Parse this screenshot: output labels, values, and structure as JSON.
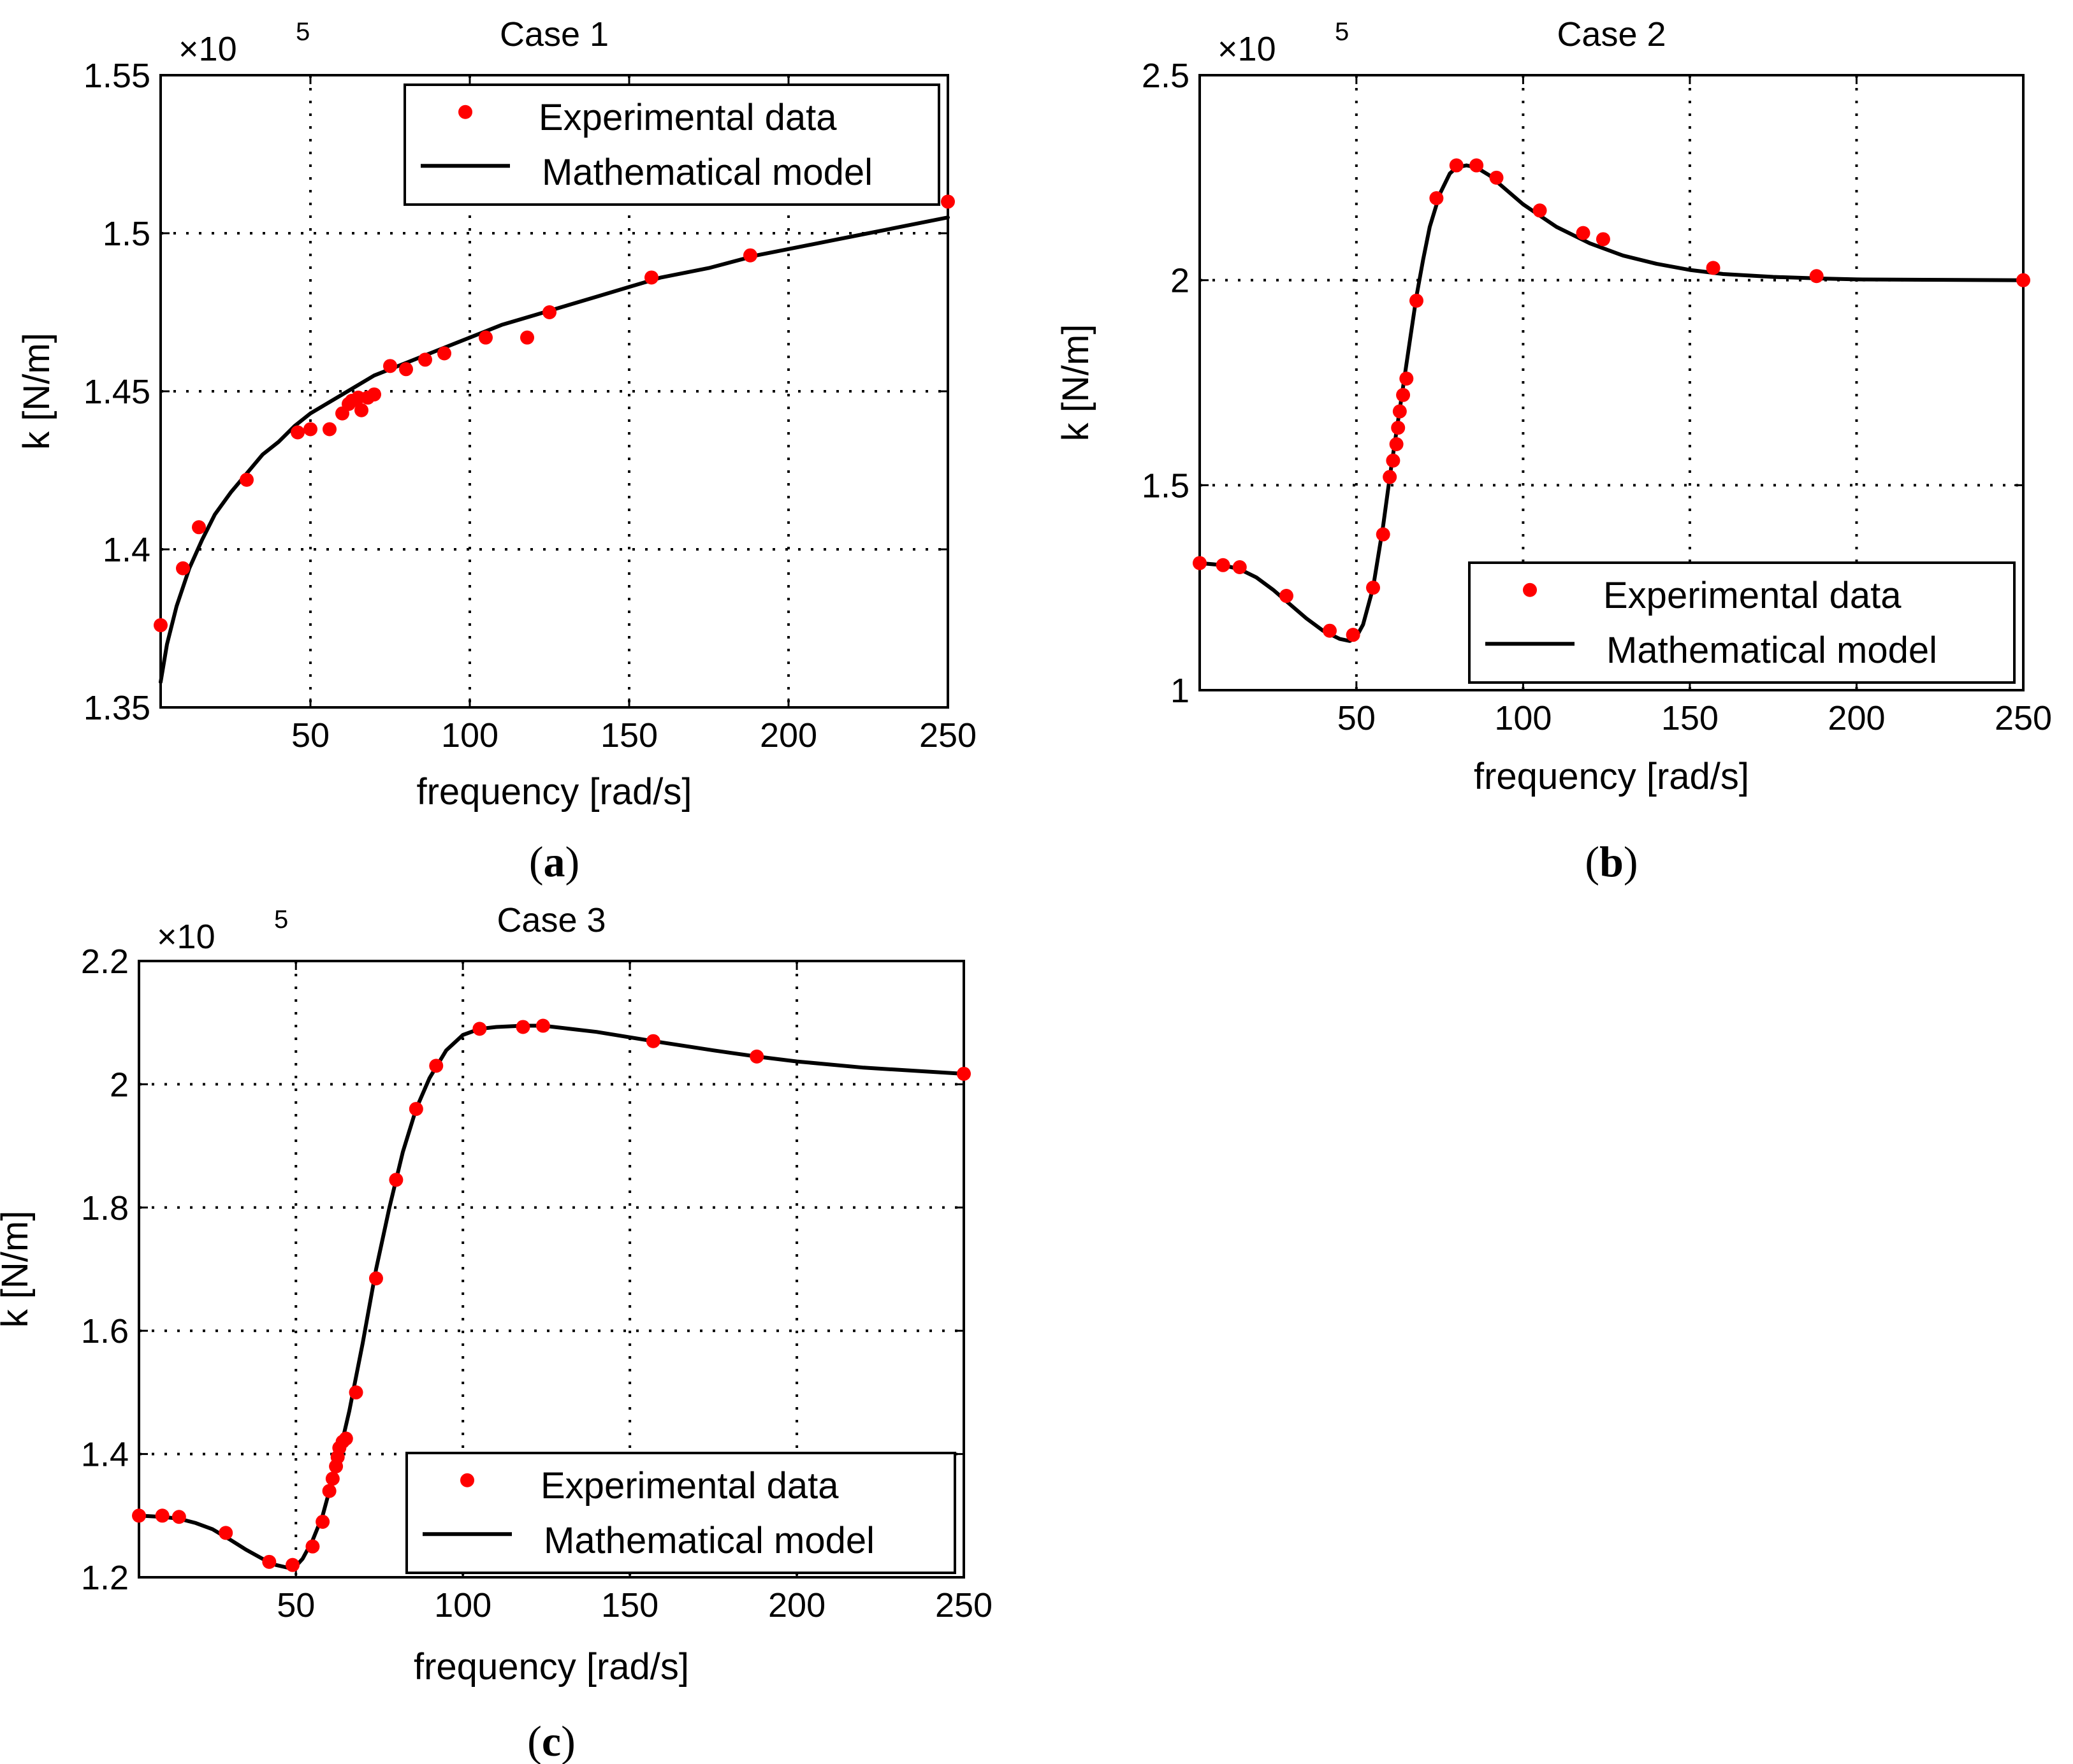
{
  "chart_data": [
    {
      "type": "line",
      "id": "a",
      "title": "Case 1",
      "xlabel": "frequency [rad/s]",
      "ylabel": "k [N/m]",
      "exponent_label": "×10",
      "exponent_power": "5",
      "panel_label": "a",
      "xlim": [
        3,
        250
      ],
      "ylim": [
        1.35,
        1.55
      ],
      "xticks": [
        50,
        100,
        150,
        200,
        250
      ],
      "yticks": [
        1.35,
        1.4,
        1.45,
        1.5,
        1.55
      ],
      "xtick_labels": [
        "50",
        "100",
        "150",
        "200",
        "250"
      ],
      "ytick_labels": [
        "1.35",
        "1.4",
        "1.45",
        "1.5",
        "1.55"
      ],
      "grid": true,
      "legend_position": "top-right",
      "legend": [
        "Experimental data",
        "Mathematical model"
      ],
      "series": [
        {
          "name": "Experimental data",
          "style": "markers",
          "color": "#ff0000",
          "x": [
            3,
            10,
            15,
            30,
            46,
            50,
            56,
            60,
            62,
            63,
            65,
            66,
            68,
            70,
            75,
            80,
            86,
            92,
            105,
            118,
            125,
            157,
            188,
            250
          ],
          "y": [
            1.376,
            1.394,
            1.407,
            1.422,
            1.437,
            1.438,
            1.438,
            1.443,
            1.446,
            1.447,
            1.448,
            1.444,
            1.448,
            1.449,
            1.458,
            1.457,
            1.46,
            1.462,
            1.467,
            1.467,
            1.475,
            1.486,
            1.493,
            1.51
          ]
        },
        {
          "name": "Mathematical model",
          "style": "line",
          "color": "#000000",
          "x": [
            3,
            5,
            8,
            12,
            16,
            20,
            25,
            30,
            35,
            40,
            45,
            50,
            55,
            60,
            70,
            80,
            90,
            100,
            110,
            120,
            130,
            140,
            150,
            160,
            175,
            190,
            200,
            220,
            235,
            250
          ],
          "y": [
            1.358,
            1.37,
            1.382,
            1.394,
            1.403,
            1.411,
            1.418,
            1.424,
            1.43,
            1.434,
            1.439,
            1.443,
            1.446,
            1.449,
            1.455,
            1.459,
            1.463,
            1.467,
            1.471,
            1.474,
            1.477,
            1.48,
            1.483,
            1.486,
            1.489,
            1.493,
            1.495,
            1.499,
            1.502,
            1.505
          ]
        }
      ]
    },
    {
      "type": "line",
      "id": "b",
      "title": "Case 2",
      "xlabel": "frequency [rad/s]",
      "ylabel": "k [N/m]",
      "exponent_label": "×10",
      "exponent_power": "5",
      "panel_label": "b",
      "xlim": [
        3,
        250
      ],
      "ylim": [
        1.0,
        2.5
      ],
      "xticks": [
        50,
        100,
        150,
        200,
        250
      ],
      "yticks": [
        1.0,
        1.5,
        2.0,
        2.5
      ],
      "xtick_labels": [
        "50",
        "100",
        "150",
        "200",
        "250"
      ],
      "ytick_labels": [
        "1",
        "1.5",
        "2",
        "2.5"
      ],
      "grid": true,
      "legend_position": "bottom-right",
      "legend": [
        "Experimental data",
        "Mathematical model"
      ],
      "series": [
        {
          "name": "Experimental data",
          "style": "markers",
          "color": "#ff0000",
          "x": [
            3,
            10,
            15,
            29,
            42,
            49,
            55,
            58,
            60,
            61,
            62,
            62.5,
            63,
            64,
            65,
            68,
            74,
            80,
            86,
            92,
            105,
            118,
            124,
            157,
            188,
            250
          ],
          "y": [
            1.31,
            1.305,
            1.3,
            1.23,
            1.145,
            1.135,
            1.25,
            1.38,
            1.52,
            1.56,
            1.6,
            1.64,
            1.68,
            1.72,
            1.76,
            1.95,
            2.2,
            2.28,
            2.28,
            2.25,
            2.17,
            2.115,
            2.1,
            2.03,
            2.01,
            2.0
          ]
        },
        {
          "name": "Mathematical model",
          "style": "line",
          "color": "#000000",
          "x": [
            3,
            10,
            15,
            20,
            25,
            30,
            35,
            40,
            45,
            48,
            50,
            52,
            55,
            58,
            60,
            62,
            64,
            66,
            68,
            70,
            72,
            75,
            78,
            80,
            83,
            86,
            90,
            95,
            100,
            110,
            120,
            130,
            140,
            150,
            160,
            175,
            190,
            200,
            220,
            250
          ],
          "y": [
            1.31,
            1.305,
            1.295,
            1.275,
            1.245,
            1.21,
            1.175,
            1.145,
            1.125,
            1.12,
            1.13,
            1.16,
            1.25,
            1.4,
            1.52,
            1.63,
            1.74,
            1.85,
            1.96,
            2.05,
            2.13,
            2.21,
            2.26,
            2.275,
            2.28,
            2.275,
            2.255,
            2.22,
            2.185,
            2.13,
            2.09,
            2.06,
            2.04,
            2.025,
            2.015,
            2.008,
            2.004,
            2.002,
            2.001,
            2.0
          ]
        }
      ]
    },
    {
      "type": "line",
      "id": "c",
      "title": "Case 3",
      "xlabel": "frequency [rad/s]",
      "ylabel": "k [N/m]",
      "exponent_label": "×10",
      "exponent_power": "5",
      "panel_label": "c",
      "xlim": [
        3,
        250
      ],
      "ylim": [
        1.2,
        2.2
      ],
      "xticks": [
        50,
        100,
        150,
        200,
        250
      ],
      "yticks": [
        1.2,
        1.4,
        1.6,
        1.8,
        2.0,
        2.2
      ],
      "xtick_labels": [
        "50",
        "100",
        "150",
        "200",
        "250"
      ],
      "ytick_labels": [
        "1.2",
        "1.4",
        "1.6",
        "1.8",
        "2",
        "2.2"
      ],
      "grid": true,
      "legend_position": "bottom-right",
      "legend": [
        "Experimental data",
        "Mathematical model"
      ],
      "series": [
        {
          "name": "Experimental data",
          "style": "markers",
          "color": "#ff0000",
          "x": [
            3,
            10,
            15,
            29,
            42,
            49,
            55,
            58,
            60,
            61,
            62,
            62.5,
            63,
            64,
            65,
            68,
            74,
            80,
            86,
            92,
            105,
            118,
            124,
            157,
            188,
            250
          ],
          "y": [
            1.3,
            1.3,
            1.298,
            1.272,
            1.225,
            1.22,
            1.25,
            1.29,
            1.34,
            1.36,
            1.38,
            1.395,
            1.41,
            1.42,
            1.425,
            1.5,
            1.685,
            1.845,
            1.96,
            2.03,
            2.09,
            2.093,
            2.095,
            2.07,
            2.045,
            2.017
          ]
        },
        {
          "name": "Mathematical model",
          "style": "line",
          "color": "#000000",
          "x": [
            3,
            10,
            15,
            20,
            25,
            30,
            35,
            40,
            44,
            48,
            50,
            52,
            55,
            58,
            60,
            63,
            66,
            70,
            74,
            78,
            82,
            86,
            90,
            95,
            100,
            105,
            110,
            118,
            124,
            140,
            157,
            175,
            188,
            200,
            220,
            250
          ],
          "y": [
            1.3,
            1.298,
            1.295,
            1.288,
            1.278,
            1.262,
            1.245,
            1.23,
            1.22,
            1.215,
            1.218,
            1.23,
            1.26,
            1.3,
            1.34,
            1.4,
            1.47,
            1.58,
            1.7,
            1.8,
            1.89,
            1.96,
            2.01,
            2.055,
            2.08,
            2.09,
            2.093,
            2.095,
            2.095,
            2.085,
            2.07,
            2.055,
            2.045,
            2.037,
            2.027,
            2.017
          ]
        }
      ]
    }
  ]
}
